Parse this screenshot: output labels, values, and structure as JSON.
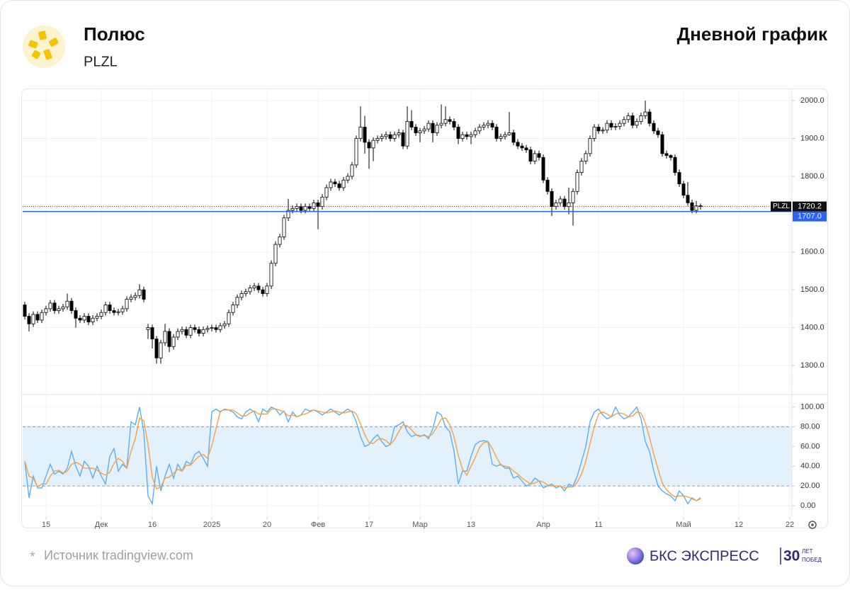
{
  "header": {
    "title": "Полюс",
    "ticker": "PLZL",
    "period": "Дневной график"
  },
  "chart_data": [
    {
      "type": "candlestick",
      "symbol": "PLZL",
      "up_color": "#ffffff",
      "down_color": "#000000",
      "grid": true,
      "xlim": [
        -0.5,
        180.5
      ],
      "ylim": [
        1227,
        2032
      ],
      "yticks": [
        {
          "value": 1300,
          "label": "1300.0"
        },
        {
          "value": 1400,
          "label": "1400.0"
        },
        {
          "value": 1500,
          "label": "1500.0"
        },
        {
          "value": 1600,
          "label": "1600.0"
        },
        {
          "value": 1700,
          "label": "1700.0"
        },
        {
          "value": 1800,
          "label": "1800.0"
        },
        {
          "value": 1900,
          "label": "1900.0"
        },
        {
          "value": 2000,
          "label": "2000.0"
        }
      ],
      "last_price": 1720.2,
      "level": {
        "value": 1707,
        "label": "1707.0"
      },
      "level_color": "#2962ff",
      "open": [
        1460,
        1430,
        1410,
        1435,
        1420,
        1440,
        1450,
        1465,
        1445,
        1450,
        1455,
        1470,
        1445,
        1425,
        1420,
        1430,
        1415,
        1425,
        1430,
        1440,
        1460,
        1445,
        1440,
        1442,
        1450,
        1475,
        1480,
        1485,
        1500,
        1395,
        1400,
        1370,
        1320,
        1360,
        1390,
        1350,
        1375,
        1390,
        1395,
        1380,
        1400,
        1395,
        1385,
        1395,
        1398,
        1400,
        1395,
        1405,
        1410,
        1440,
        1460,
        1480,
        1490,
        1495,
        1505,
        1510,
        1500,
        1490,
        1510,
        1570,
        1620,
        1640,
        1690,
        1710,
        1715,
        1720,
        1710,
        1720,
        1715,
        1730,
        1720,
        1745,
        1770,
        1785,
        1780,
        1770,
        1790,
        1800,
        1830,
        1900,
        1930,
        1890,
        1875,
        1895,
        1900,
        1905,
        1910,
        1900,
        1910,
        1915,
        1880,
        1945,
        1930,
        1915,
        1920,
        1925,
        1940,
        1915,
        1935,
        1940,
        1950,
        1945,
        1930,
        1900,
        1910,
        1905,
        1910,
        1920,
        1930,
        1935,
        1940,
        1930,
        1900,
        1905,
        1910,
        1915,
        1890,
        1880,
        1875,
        1870,
        1840,
        1860,
        1850,
        1790,
        1760,
        1720,
        1730,
        1740,
        1720,
        1730,
        1760,
        1810,
        1840,
        1860,
        1900,
        1930,
        1920,
        1922,
        1940,
        1930,
        1932,
        1940,
        1950,
        1960,
        1935,
        1945,
        1960,
        1970,
        1940,
        1920,
        1910,
        1860,
        1855,
        1850,
        1810,
        1780,
        1750,
        1730,
        1710,
        1722
      ],
      "high": [
        1468,
        1438,
        1443,
        1443,
        1448,
        1458,
        1473,
        1473,
        1458,
        1463,
        1490,
        1478,
        1453,
        1433,
        1438,
        1438,
        1433,
        1438,
        1448,
        1468,
        1468,
        1453,
        1450,
        1458,
        1483,
        1488,
        1493,
        1515,
        1508,
        1410,
        1408,
        1378,
        1368,
        1410,
        1398,
        1383,
        1398,
        1403,
        1403,
        1408,
        1408,
        1403,
        1403,
        1406,
        1408,
        1408,
        1413,
        1418,
        1448,
        1468,
        1488,
        1498,
        1503,
        1513,
        1518,
        1518,
        1508,
        1518,
        1578,
        1628,
        1648,
        1698,
        1740,
        1723,
        1728,
        1728,
        1728,
        1728,
        1738,
        1738,
        1753,
        1778,
        1793,
        1793,
        1788,
        1798,
        1808,
        1838,
        1908,
        1985,
        1960,
        1898,
        1903,
        1908,
        1913,
        1918,
        1918,
        1918,
        1925,
        1923,
        1985,
        1975,
        1938,
        1928,
        1933,
        1948,
        1948,
        1943,
        1990,
        1985,
        1958,
        1953,
        1938,
        1918,
        1918,
        1918,
        1928,
        1938,
        1943,
        1948,
        1948,
        1938,
        1913,
        1918,
        1970,
        1923,
        1898,
        1888,
        1883,
        1878,
        1868,
        1868,
        1858,
        1798,
        1768,
        1738,
        1748,
        1748,
        1770,
        1768,
        1818,
        1848,
        1868,
        1908,
        1938,
        1938,
        1930,
        1948,
        1948,
        1940,
        1948,
        1958,
        1968,
        1968,
        1953,
        1968,
        2000,
        1978,
        1948,
        1928,
        1918,
        1868,
        1858,
        1858,
        1818,
        1788,
        1785,
        1738,
        1735,
        1728
      ],
      "low": [
        1422,
        1390,
        1402,
        1412,
        1412,
        1432,
        1442,
        1437,
        1437,
        1442,
        1447,
        1437,
        1400,
        1412,
        1412,
        1407,
        1407,
        1417,
        1422,
        1432,
        1437,
        1432,
        1432,
        1434,
        1442,
        1467,
        1472,
        1477,
        1467,
        1370,
        1345,
        1305,
        1305,
        1352,
        1335,
        1342,
        1367,
        1382,
        1372,
        1372,
        1387,
        1377,
        1377,
        1387,
        1390,
        1387,
        1387,
        1397,
        1402,
        1432,
        1452,
        1472,
        1482,
        1487,
        1497,
        1492,
        1482,
        1482,
        1502,
        1562,
        1612,
        1632,
        1682,
        1702,
        1707,
        1702,
        1702,
        1707,
        1707,
        1660,
        1712,
        1737,
        1762,
        1772,
        1762,
        1762,
        1782,
        1792,
        1822,
        1892,
        1860,
        1820,
        1840,
        1887,
        1892,
        1897,
        1892,
        1892,
        1902,
        1872,
        1872,
        1922,
        1907,
        1890,
        1912,
        1917,
        1890,
        1907,
        1927,
        1932,
        1937,
        1922,
        1885,
        1892,
        1897,
        1885,
        1902,
        1912,
        1922,
        1927,
        1922,
        1892,
        1892,
        1897,
        1907,
        1882,
        1872,
        1867,
        1862,
        1832,
        1832,
        1842,
        1782,
        1752,
        1695,
        1712,
        1722,
        1712,
        1700,
        1670,
        1752,
        1802,
        1832,
        1852,
        1892,
        1912,
        1912,
        1914,
        1922,
        1922,
        1924,
        1932,
        1942,
        1927,
        1927,
        1937,
        1952,
        1932,
        1912,
        1902,
        1852,
        1847,
        1842,
        1802,
        1772,
        1742,
        1722,
        1702,
        1702,
        1712
      ],
      "close": [
        1430,
        1410,
        1435,
        1420,
        1440,
        1450,
        1465,
        1445,
        1450,
        1455,
        1470,
        1445,
        1425,
        1420,
        1430,
        1415,
        1425,
        1430,
        1440,
        1460,
        1445,
        1440,
        1442,
        1450,
        1475,
        1480,
        1485,
        1500,
        1475,
        1400,
        1370,
        1320,
        1360,
        1390,
        1350,
        1375,
        1390,
        1395,
        1380,
        1400,
        1395,
        1385,
        1395,
        1398,
        1400,
        1395,
        1405,
        1410,
        1440,
        1460,
        1480,
        1490,
        1495,
        1505,
        1510,
        1500,
        1490,
        1510,
        1570,
        1620,
        1640,
        1690,
        1710,
        1715,
        1720,
        1710,
        1720,
        1715,
        1730,
        1720,
        1745,
        1770,
        1785,
        1780,
        1770,
        1790,
        1800,
        1830,
        1900,
        1930,
        1890,
        1875,
        1895,
        1900,
        1905,
        1910,
        1900,
        1910,
        1915,
        1880,
        1945,
        1930,
        1915,
        1920,
        1925,
        1940,
        1915,
        1935,
        1940,
        1950,
        1945,
        1930,
        1900,
        1910,
        1905,
        1910,
        1920,
        1930,
        1935,
        1940,
        1930,
        1900,
        1905,
        1910,
        1915,
        1890,
        1880,
        1875,
        1870,
        1840,
        1860,
        1850,
        1790,
        1760,
        1720,
        1730,
        1740,
        1720,
        1730,
        1760,
        1810,
        1840,
        1860,
        1900,
        1930,
        1920,
        1922,
        1940,
        1930,
        1932,
        1940,
        1950,
        1960,
        1935,
        1945,
        1960,
        1970,
        1940,
        1920,
        1910,
        1860,
        1855,
        1850,
        1810,
        1780,
        1750,
        1730,
        1710,
        1722,
        1720.2
      ]
    },
    {
      "type": "line",
      "grid": true,
      "band": [
        20,
        80
      ],
      "band_color": "#e3f1fc",
      "xlim": [
        -0.5,
        180.5
      ],
      "ylim": [
        -11.5,
        112
      ],
      "xticks": [
        {
          "value": 5,
          "label": "15"
        },
        {
          "value": 18,
          "label": "Дек"
        },
        {
          "value": 30,
          "label": "16"
        },
        {
          "value": 44,
          "label": "2025"
        },
        {
          "value": 57,
          "label": "20"
        },
        {
          "value": 69,
          "label": "Фев"
        },
        {
          "value": 81,
          "label": "17"
        },
        {
          "value": 93,
          "label": "Мар"
        },
        {
          "value": 105,
          "label": "13"
        },
        {
          "value": 122,
          "label": "Апр"
        },
        {
          "value": 135,
          "label": "11"
        },
        {
          "value": 155,
          "label": "Май"
        },
        {
          "value": 168,
          "label": "12"
        },
        {
          "value": 180,
          "label": "22"
        }
      ],
      "yticks": [
        {
          "value": 0,
          "label": "0.00"
        },
        {
          "value": 20,
          "label": "20.00"
        },
        {
          "value": 40,
          "label": "40.00"
        },
        {
          "value": 60,
          "label": "60.00"
        },
        {
          "value": 80,
          "label": "80.00"
        },
        {
          "value": 100,
          "label": "100.00"
        }
      ],
      "series": [
        {
          "color": "#5aaef0",
          "values": [
            45,
            8,
            30,
            18,
            18,
            30,
            42,
            32,
            35,
            32,
            38,
            55,
            40,
            30,
            45,
            40,
            28,
            40,
            30,
            22,
            50,
            58,
            35,
            42,
            38,
            85,
            82,
            100,
            75,
            10,
            2,
            40,
            15,
            30,
            42,
            28,
            42,
            35,
            45,
            42,
            52,
            55,
            48,
            40,
            95,
            98,
            95,
            98,
            97,
            95,
            90,
            88,
            95,
            98,
            95,
            85,
            98,
            95,
            100,
            98,
            92,
            96,
            85,
            95,
            90,
            92,
            98,
            96,
            97,
            95,
            92,
            95,
            98,
            95,
            92,
            95,
            98,
            95,
            85,
            70,
            60,
            62,
            68,
            72,
            65,
            60,
            62,
            80,
            82,
            85,
            75,
            70,
            72,
            70,
            72,
            68,
            78,
            95,
            92,
            80,
            75,
            55,
            22,
            35,
            35,
            50,
            62,
            65,
            66,
            65,
            42,
            40,
            42,
            38,
            38,
            28,
            30,
            25,
            20,
            22,
            28,
            25,
            18,
            20,
            22,
            18,
            20,
            15,
            22,
            20,
            30,
            45,
            60,
            85,
            95,
            98,
            92,
            88,
            90,
            100,
            92,
            88,
            90,
            95,
            100,
            88,
            65,
            55,
            35,
            20,
            15,
            12,
            10,
            5,
            15,
            10,
            2,
            8,
            5,
            8
          ]
        },
        {
          "color": "#f5a04a",
          "values": [
            45,
            30,
            28,
            19,
            22,
            22,
            30,
            35,
            36,
            33,
            35,
            42,
            44,
            42,
            38,
            38,
            38,
            36,
            33,
            31,
            34,
            43,
            48,
            45,
            38,
            55,
            68,
            89,
            86,
            62,
            29,
            17,
            19,
            28,
            29,
            33,
            37,
            35,
            41,
            41,
            46,
            50,
            52,
            48,
            61,
            78,
            96,
            97,
            97,
            97,
            94,
            91,
            91,
            94,
            96,
            93,
            93,
            93,
            98,
            98,
            97,
            95,
            91,
            92,
            90,
            92,
            93,
            95,
            97,
            96,
            95,
            94,
            95,
            96,
            95,
            94,
            95,
            96,
            93,
            83,
            72,
            64,
            63,
            67,
            68,
            66,
            62,
            67,
            75,
            82,
            81,
            77,
            72,
            71,
            71,
            70,
            73,
            80,
            88,
            89,
            82,
            70,
            51,
            37,
            31,
            40,
            49,
            59,
            64,
            65,
            58,
            49,
            41,
            40,
            39,
            35,
            32,
            28,
            25,
            22,
            23,
            25,
            24,
            21,
            20,
            20,
            20,
            18,
            19,
            19,
            24,
            32,
            45,
            63,
            80,
            93,
            95,
            93,
            90,
            93,
            94,
            93,
            90,
            91,
            95,
            94,
            84,
            69,
            52,
            37,
            23,
            16,
            12,
            9,
            10,
            10,
            9,
            7,
            5,
            7
          ]
        }
      ]
    }
  ],
  "footer": {
    "mark": "*",
    "source": "Источник tradingview.com",
    "brand": "БКС ЭКСПРЕСС",
    "years": "30",
    "years_word": "ЛЕТ",
    "years_tail": "ПОБЕД"
  }
}
